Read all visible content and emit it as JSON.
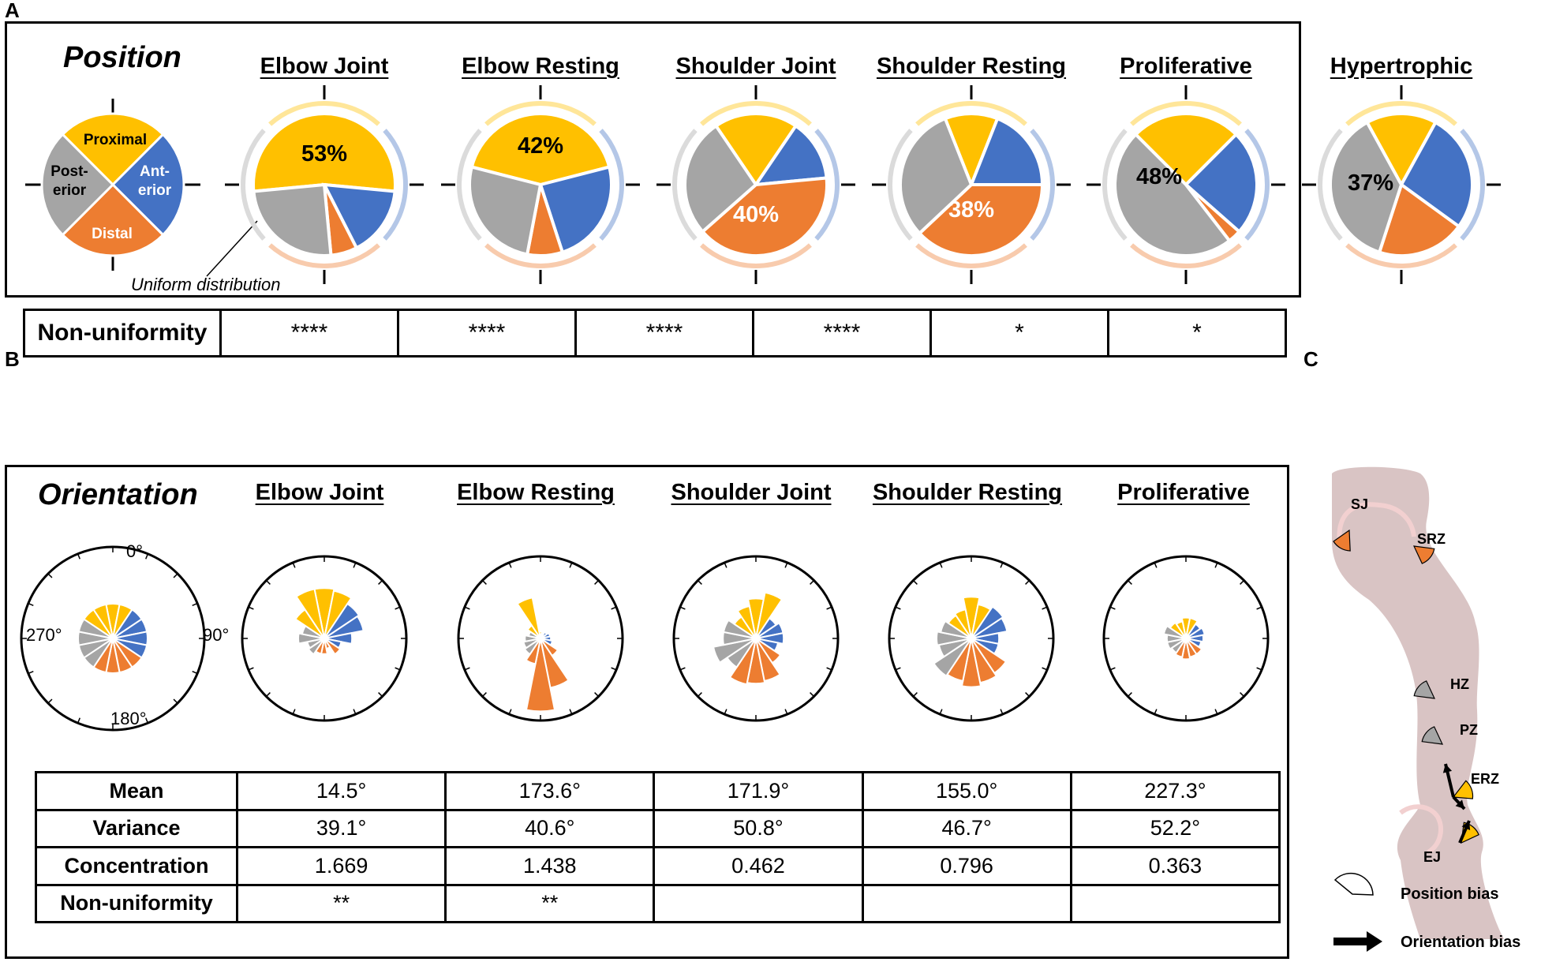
{
  "panel_labels": {
    "a": "A",
    "b": "B",
    "c": "C"
  },
  "position": {
    "title": "Position",
    "legend": {
      "proximal": "Proximal",
      "anterior": "Ant-\nerior",
      "posterior": "Post-\nerior",
      "distal": "Distal"
    },
    "note": "Uniform distribution",
    "row_label": "Non-uniformity",
    "columns": [
      {
        "name": "Elbow Joint",
        "stars": "****",
        "label": "53%"
      },
      {
        "name": "Elbow Resting",
        "stars": "****",
        "label": "42%"
      },
      {
        "name": "Shoulder Joint",
        "stars": "****",
        "label": "40%"
      },
      {
        "name": "Shoulder Resting",
        "stars": "****",
        "label": "38%"
      },
      {
        "name": "Proliferative",
        "stars": "*",
        "label": "48%"
      },
      {
        "name": "Hypertrophic",
        "stars": "*",
        "label": "37%"
      }
    ]
  },
  "orientation": {
    "title": "Orientation",
    "axis_labels": {
      "top": "0°",
      "right": "90°",
      "bottom": "180°",
      "left": "270°"
    },
    "columns": [
      "Elbow Joint",
      "Elbow Resting",
      "Shoulder Joint",
      "Shoulder Resting",
      "Proliferative"
    ],
    "rows": [
      {
        "label": "Mean",
        "values": [
          "14.5°",
          "173.6°",
          "171.9°",
          "155.0°",
          "227.3°"
        ]
      },
      {
        "label": "Variance",
        "values": [
          "39.1°",
          "40.6°",
          "50.8°",
          "46.7°",
          "52.2°"
        ]
      },
      {
        "label": "Concentration",
        "values": [
          "1.669",
          "1.438",
          "0.462",
          "0.796",
          "0.363"
        ]
      },
      {
        "label": "Non-uniformity",
        "values": [
          "**",
          "**",
          "",
          "",
          ""
        ]
      }
    ]
  },
  "panel_c": {
    "zones": [
      "SJ",
      "SRZ",
      "HZ",
      "PZ",
      "ERZ",
      "EJ"
    ],
    "legend_position": "Position bias",
    "legend_orientation": "Orientation bias"
  },
  "colors": {
    "proximal": "#FFC000",
    "anterior": "#4472C4",
    "distal": "#ED7D31",
    "posterior": "#A5A5A5",
    "bone": "#D9C4C4",
    "cartilage": "#F2D0D0"
  },
  "chart_data": [
    {
      "type": "pie",
      "title": "Position",
      "categories": [
        "Proximal",
        "Anterior",
        "Distal",
        "Posterior"
      ],
      "series": [
        {
          "name": "Elbow Joint",
          "values": [
            53,
            16,
            6,
            25
          ]
        },
        {
          "name": "Elbow Resting",
          "values": [
            42,
            24,
            8,
            26
          ]
        },
        {
          "name": "Shoulder Joint",
          "values": [
            19,
            14,
            40,
            27
          ]
        },
        {
          "name": "Shoulder Resting",
          "values": [
            12,
            19,
            38,
            31
          ]
        },
        {
          "name": "Proliferative",
          "values": [
            25,
            24,
            3,
            48
          ]
        },
        {
          "name": "Hypertrophic",
          "values": [
            16,
            27,
            20,
            37
          ]
        }
      ]
    },
    {
      "type": "rose",
      "title": "Orientation",
      "bin_centers_deg": [
        0,
        22.5,
        45,
        67.5,
        90,
        112.5,
        135,
        157.5,
        180,
        202.5,
        225,
        247.5,
        270,
        292.5,
        315,
        337.5
      ],
      "series": [
        {
          "name": "Uniform",
          "values": [
            1,
            1,
            1,
            1,
            1,
            1,
            1,
            1,
            1,
            1,
            1,
            1,
            1,
            1,
            1,
            1
          ]
        },
        {
          "name": "Elbow Joint",
          "values": [
            1.45,
            1.4,
            1.2,
            1.15,
            0.8,
            0.5,
            0.55,
            0.3,
            0.45,
            0.45,
            0.55,
            0.5,
            0.75,
            0.65,
            1.0,
            1.45
          ]
        },
        {
          "name": "Elbow Resting",
          "values": [
            0.2,
            0.15,
            0.22,
            0.28,
            0.3,
            0.35,
            0.6,
            1.45,
            2.1,
            0.75,
            0.55,
            0.5,
            0.45,
            0.35,
            0.45,
            1.2
          ]
        },
        {
          "name": "Shoulder Joint",
          "values": [
            1.15,
            1.35,
            0.7,
            0.8,
            0.8,
            0.65,
            0.85,
            1.25,
            1.3,
            1.35,
            1.0,
            1.25,
            0.95,
            0.95,
            0.75,
            0.95
          ]
        },
        {
          "name": "Shoulder Resting",
          "values": [
            1.2,
            1.0,
            1.1,
            1.05,
            0.8,
            0.8,
            1.2,
            1.3,
            1.4,
            1.25,
            1.3,
            0.95,
            1.0,
            0.9,
            0.8,
            0.85
          ]
        },
        {
          "name": "Proliferative",
          "values": [
            0.6,
            0.6,
            0.5,
            0.55,
            0.5,
            0.45,
            0.55,
            0.55,
            0.6,
            0.55,
            0.5,
            0.55,
            0.55,
            0.65,
            0.55,
            0.5
          ]
        }
      ]
    }
  ]
}
